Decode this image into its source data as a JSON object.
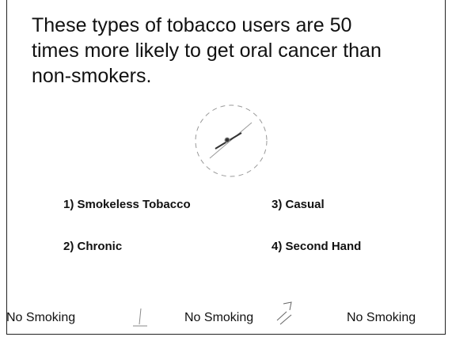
{
  "question": [
    "These types of tobacco users are 50",
    "times more likely to get oral cancer than",
    "non-smokers."
  ],
  "options": [
    "1) Smokeless Tobacco",
    "2) Chronic",
    "3) Casual",
    "4) Second Hand"
  ],
  "footer": [
    "No Smoking",
    "No Smoking",
    "No Smoking"
  ]
}
